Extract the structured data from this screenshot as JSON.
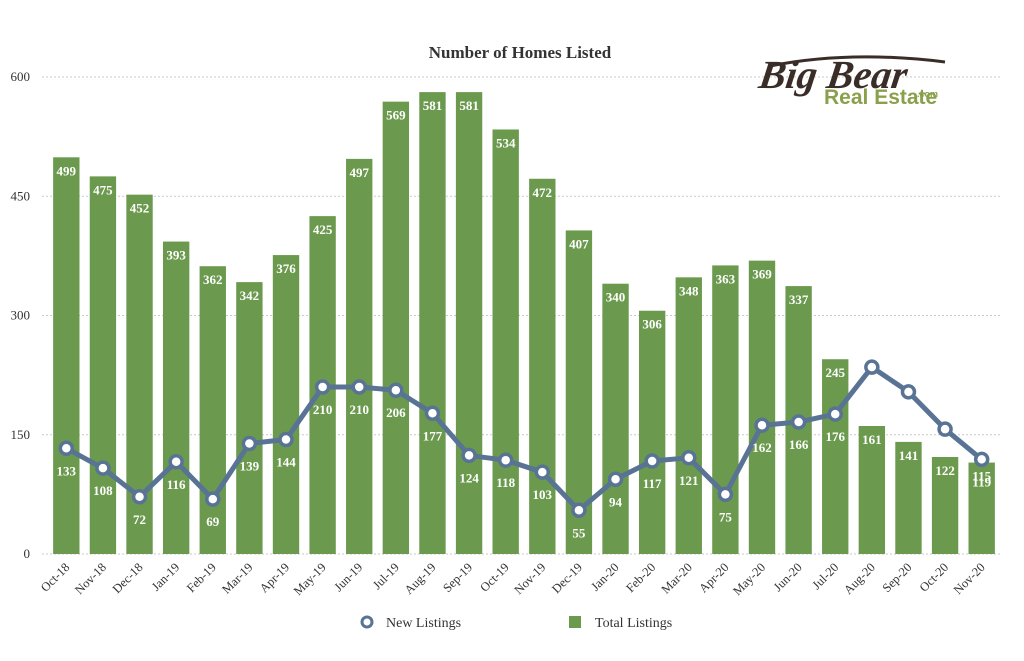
{
  "logo": {
    "main": "Big Bear",
    "sub": "Real Estate",
    "suffix": ".com"
  },
  "colors": {
    "bar": "#6b9a4e",
    "line": "#587394",
    "grid": "#c9c9c9"
  },
  "chart_data": {
    "type": "bar",
    "title": "Number of Homes Listed",
    "xlabel": "",
    "ylabel": "",
    "ylim": [
      0,
      600
    ],
    "yticks": [
      0,
      150,
      300,
      450,
      600
    ],
    "grid": true,
    "legend_position": "bottom",
    "categories": [
      "Oct-18",
      "Nov-18",
      "Dec-18",
      "Jan-19",
      "Feb-19",
      "Mar-19",
      "Apr-19",
      "May-19",
      "Jun-19",
      "Jul-19",
      "Aug-19",
      "Sep-19",
      "Oct-19",
      "Nov-19",
      "Dec-19",
      "Jan-20",
      "Feb-20",
      "Mar-20",
      "Apr-20",
      "May-20",
      "Jun-20",
      "Jul-20",
      "Aug-20",
      "Sep-20",
      "Oct-20",
      "Nov-20"
    ],
    "series": [
      {
        "name": "Total Listings",
        "type": "bar",
        "values": [
          499,
          475,
          452,
          393,
          362,
          342,
          376,
          425,
          497,
          569,
          581,
          581,
          534,
          472,
          407,
          340,
          306,
          348,
          363,
          369,
          337,
          245,
          161,
          141,
          122,
          115
        ]
      },
      {
        "name": "New Listings",
        "type": "line",
        "values": [
          133,
          108,
          72,
          116,
          69,
          139,
          144,
          210,
          210,
          206,
          177,
          124,
          118,
          103,
          55,
          94,
          117,
          121,
          75,
          162,
          166,
          176,
          235,
          204,
          157,
          119
        ]
      }
    ]
  }
}
